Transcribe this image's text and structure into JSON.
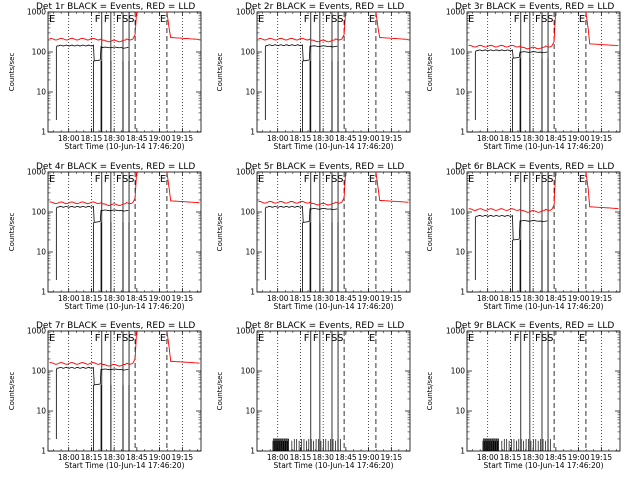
{
  "chart_data": {
    "type": "line",
    "layout": "3x3 grid",
    "panels": [
      {
        "title": "Det 1r BLACK = Events, RED = LLD",
        "black_events": true
      },
      {
        "title": "Det 2r BLACK = Events, RED = LLD",
        "black_events": true
      },
      {
        "title": "Det 3r BLACK = Events, RED = LLD",
        "black_events": true
      },
      {
        "title": "Det 4r BLACK = Events, RED = LLD",
        "black_events": true
      },
      {
        "title": "Det 5r BLACK = Events, RED = LLD",
        "black_events": true
      },
      {
        "title": "Det 6r BLACK = Events, RED = LLD",
        "black_events": true
      },
      {
        "title": "Det 7r BLACK = Events, RED = LLD",
        "black_events": true
      },
      {
        "title": "Det 8r BLACK = Events, RED = LLD",
        "black_events": false
      },
      {
        "title": "Det 9r BLACK = Events, RED = LLD",
        "black_events": false
      }
    ],
    "xlabel": "Start Time (10-Jun-14 17:46:20)",
    "ylabel": "Counts/sec",
    "x_tick_labels": [
      "18:00",
      "18:15",
      "18:30",
      "18:45",
      "19:00",
      "19:15"
    ],
    "x_tick_minutes": [
      13.67,
      28.67,
      43.67,
      58.67,
      73.67,
      88.67
    ],
    "xlim_minutes": [
      0,
      101
    ],
    "y_scale": "log",
    "ylim": [
      1,
      1000
    ],
    "y_tick_labels": [
      "1",
      "10",
      "100",
      "1000"
    ],
    "y_tick_values": [
      1,
      10,
      100,
      1000
    ],
    "dotted_vlines_minutes": [
      13.67,
      28.67,
      43.67,
      73.67,
      88.67
    ],
    "solid_vlines": [
      {
        "label": "F",
        "minutes": 35.5
      },
      {
        "label": "F",
        "minutes": 41.5
      },
      {
        "label": "F",
        "minutes": 49.5
      },
      {
        "label": "S",
        "minutes": 53.5
      }
    ],
    "dashed_vlines": [
      {
        "label": "S",
        "minutes": 57.5
      },
      {
        "label": "E",
        "minutes": 78.5
      }
    ],
    "corner_marker": "E",
    "series": [
      {
        "name": "Events",
        "color": "#000000"
      },
      {
        "name": "LLD",
        "color": "#ff0000"
      }
    ]
  }
}
